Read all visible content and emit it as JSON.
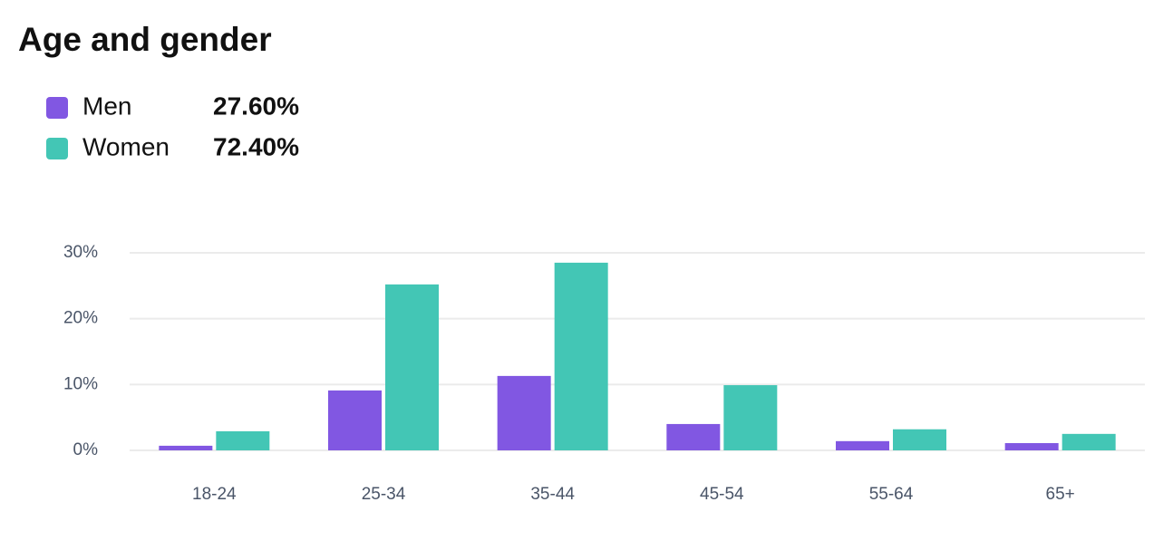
{
  "chart_data": {
    "type": "bar",
    "title": "Age and gender",
    "categories": [
      "18-24",
      "25-34",
      "35-44",
      "45-54",
      "55-64",
      "65+"
    ],
    "series": [
      {
        "name": "Men",
        "share": "27.60%",
        "color": "#8157e2",
        "values": [
          0.7,
          9.1,
          11.3,
          4.0,
          1.4,
          1.1
        ]
      },
      {
        "name": "Women",
        "share": "72.40%",
        "color": "#43c6b5",
        "values": [
          2.9,
          25.2,
          28.5,
          9.9,
          3.2,
          2.5
        ]
      }
    ],
    "ylim": [
      0,
      30
    ],
    "yticks": [
      {
        "value": 0,
        "label": "0%"
      },
      {
        "value": 10,
        "label": "10%"
      },
      {
        "value": 20,
        "label": "20%"
      },
      {
        "value": 30,
        "label": "30%"
      }
    ],
    "grid": true
  }
}
